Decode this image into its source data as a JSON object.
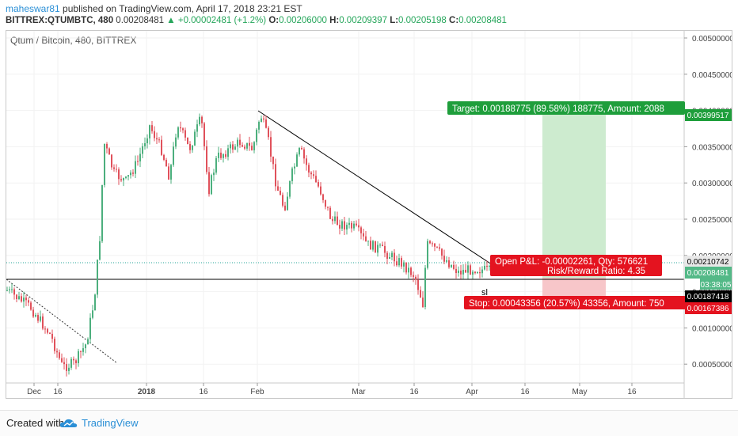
{
  "header": {
    "user": "maheswar81",
    "published": "published on TradingView.com, April 17, 2018 23:21 EST",
    "symbol": "BITTREX:QTUMBTC, 480",
    "close_price": "0.00208481",
    "change": "+0.00002481 (+1.2%)",
    "o_label": "O:",
    "o_value": "0.00206000",
    "h_label": "H:",
    "h_value": "0.00209397",
    "l_label": "L:",
    "l_value": "0.00205198",
    "c_label": "C:",
    "c_value": "0.00208481"
  },
  "chart_title": "Qtum / Bitcoin, 480, BITTREX",
  "price_axis": [
    "0.00500000",
    "0.00450000",
    "0.00400000",
    "0.00350000",
    "0.00300000",
    "0.00250000",
    "0.00200000",
    "0.00150000",
    "0.00100000",
    "0.00050000"
  ],
  "price_tags": {
    "target_level": "0.00399517",
    "entry_level": "0.00210742",
    "current": "0.00208481",
    "countdown": "03:38:05",
    "sl_line": "0.00187418",
    "stop_level": "0.00167386"
  },
  "time_axis": [
    "Dec",
    "16",
    "2018",
    "16",
    "Feb",
    "Mar",
    "16",
    "Apr",
    "16",
    "May",
    "16"
  ],
  "labels": {
    "target": "Target: 0.00188775 (89.58%) 188775, Amount: 2088",
    "open_pl": "Open P&L: -0.00002261, Qty: 576621",
    "risk_reward": "Risk/Reward Ratio: 4.35",
    "stop": "Stop: 0.00043356 (20.57%) 43356, Amount: 750",
    "sl": "sl"
  },
  "colors": {
    "up": "#4caf7d",
    "down": "#e0515b",
    "target_box": "#cdebcf",
    "stop_box": "#f7c6c9",
    "target_tag": "#1e9e3b",
    "stop_tag": "#e4131f",
    "current_tag": "#53b987",
    "link": "#2a8fd6"
  },
  "footer": {
    "created": "Created with",
    "brand": "TradingView"
  }
}
